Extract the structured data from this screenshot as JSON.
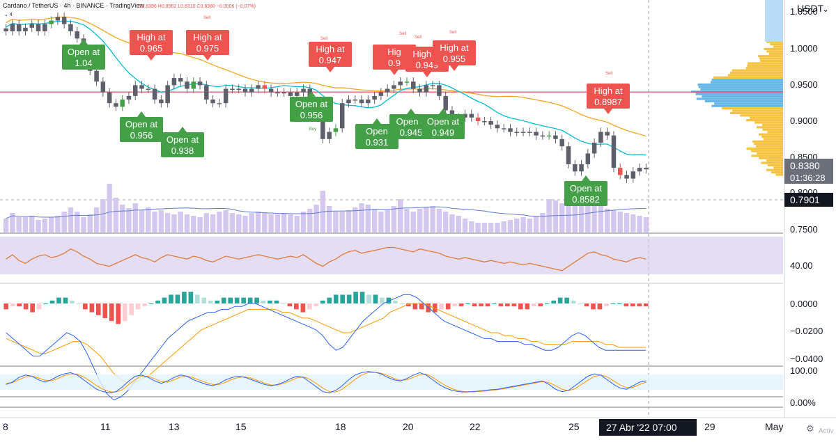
{
  "header": {
    "symbol": "Cardano / TetherUS · 4h · BINANCE · TradingView",
    "ohlc": "O0.8386 H0.8562 L0.8310 C0.8380 −0.0006 (−0.07%)",
    "indicator_row": "⌄ 4"
  },
  "currency_label": "USDT",
  "price_axis": {
    "ticks": [
      "1.0500",
      "1.0000",
      "0.9500",
      "0.9000",
      "0.8500",
      "0.8000",
      "0.7500"
    ],
    "current_price": "0.8380",
    "countdown": "01:36:28",
    "crosshair_price": "0.7901"
  },
  "rsi_axis": {
    "ticks": [
      "40.00"
    ]
  },
  "macd_axis": {
    "ticks": [
      "0.0000",
      "−0.0200",
      "−0.0400"
    ]
  },
  "stoch_axis": {
    "ticks": [
      "100.00",
      "0.00%"
    ]
  },
  "time_axis": {
    "ticks": [
      "8",
      "11",
      "13",
      "15",
      "18",
      "20",
      "22",
      "25",
      "29",
      "May"
    ],
    "crosshair_label": "27 Abr '22   07:00"
  },
  "watermark": "Activ",
  "colors": {
    "up": "#26a69a",
    "down": "#ef5350",
    "candle_gray": "#5d606b",
    "label_green": "#43a047",
    "label_red": "#ef5350",
    "ma_fast": "#00bcd4",
    "ma_slow": "#f5a623",
    "rsi_line": "#e07b39",
    "rsi_band": "#d8cfee",
    "volume": "#d5c8ee",
    "macd_line": "#2962ff",
    "signal_line": "#ff9800",
    "level_line": "#e53950"
  },
  "chart_data": [
    {
      "type": "candlestick",
      "title": "",
      "y_range": [
        0.75,
        1.06
      ],
      "reference_level": 0.9455,
      "close_series": [
        1.03,
        1.04,
        1.03,
        1.035,
        1.04,
        1.03,
        1.04,
        1.045,
        1.05,
        1.04,
        1.03,
        1.02,
        1.0,
        0.975,
        0.96,
        0.945,
        0.93,
        0.925,
        0.935,
        0.94,
        0.955,
        0.95,
        0.95,
        0.935,
        0.93,
        0.955,
        0.965,
        0.96,
        0.95,
        0.96,
        0.955,
        0.935,
        0.93,
        0.93,
        0.95,
        0.95,
        0.95,
        0.945,
        0.95,
        0.955,
        0.95,
        0.945,
        0.945,
        0.945,
        0.94,
        0.945,
        0.95,
        0.93,
        0.915,
        0.88,
        0.89,
        0.895,
        0.93,
        0.935,
        0.935,
        0.93,
        0.935,
        0.94,
        0.945,
        0.95,
        0.955,
        0.96,
        0.96,
        0.95,
        0.945,
        0.955,
        0.955,
        0.94,
        0.92,
        0.91,
        0.91,
        0.915,
        0.91,
        0.905,
        0.905,
        0.9,
        0.895,
        0.895,
        0.89,
        0.89,
        0.89,
        0.89,
        0.885,
        0.885,
        0.885,
        0.88,
        0.87,
        0.845,
        0.835,
        0.845,
        0.86,
        0.875,
        0.89,
        0.885,
        0.84,
        0.83,
        0.825,
        0.835,
        0.84,
        0.838
      ],
      "markers": [
        {
          "kind": "open",
          "price_label": "Open at",
          "value": "1.04"
        },
        {
          "kind": "high",
          "price_label": "High at",
          "value": "0.965"
        },
        {
          "kind": "high",
          "price_label": "High at",
          "value": "0.975"
        },
        {
          "kind": "open",
          "price_label": "Open at",
          "value": "0.956"
        },
        {
          "kind": "open",
          "price_label": "Open at",
          "value": "0.938"
        },
        {
          "kind": "high",
          "price_label": "High at",
          "value": "0.947"
        },
        {
          "kind": "open",
          "price_label": "Open at",
          "value": "0.956"
        },
        {
          "kind": "open",
          "price_label": "Open",
          "value": "0.931"
        },
        {
          "kind": "high",
          "price_label": "Hig",
          "value": "0.9"
        },
        {
          "kind": "high",
          "price_label": "High at",
          "value": "0.949"
        },
        {
          "kind": "open",
          "price_label": "Open a",
          "value": "0.945"
        },
        {
          "kind": "high",
          "price_label": "High at",
          "value": "0.955"
        },
        {
          "kind": "open",
          "price_label": "Open at",
          "value": "0.949"
        },
        {
          "kind": "high",
          "price_label": "High at",
          "value": "0.8987"
        },
        {
          "kind": "open",
          "price_label": "Open at",
          "value": "0.8582"
        }
      ],
      "signals": [
        "Sell",
        "Sell",
        "Buy",
        "Sell",
        "Sell",
        "Sell",
        "Sell"
      ]
    },
    {
      "type": "bar",
      "title": "",
      "series_role": "volume",
      "values": [
        20,
        28,
        22,
        22,
        24,
        18,
        20,
        22,
        24,
        30,
        36,
        30,
        22,
        26,
        36,
        48,
        70,
        50,
        40,
        35,
        42,
        32,
        36,
        30,
        32,
        28,
        26,
        30,
        26,
        24,
        22,
        28,
        26,
        30,
        32,
        28,
        26,
        24,
        28,
        30,
        28,
        26,
        26,
        28,
        26,
        24,
        30,
        34,
        40,
        60,
        38,
        30,
        30,
        32,
        36,
        42,
        40,
        34,
        30,
        32,
        38,
        48,
        34,
        30,
        34,
        36,
        38,
        34,
        30,
        26,
        24,
        20,
        16,
        14,
        14,
        14,
        14,
        16,
        18,
        20,
        22,
        20,
        24,
        28,
        48,
        46,
        42,
        38,
        38,
        46,
        56,
        46,
        40,
        34,
        32,
        30,
        28,
        26,
        24,
        22
      ]
    },
    {
      "type": "line",
      "title": "",
      "series_role": "rsi",
      "y_ticks": [
        40
      ],
      "values": [
        46,
        52,
        44,
        40,
        46,
        50,
        52,
        48,
        50,
        54,
        60,
        56,
        50,
        46,
        40,
        38,
        36,
        40,
        44,
        48,
        52,
        48,
        46,
        42,
        48,
        52,
        50,
        48,
        46,
        50,
        48,
        44,
        42,
        46,
        50,
        48,
        46,
        48,
        50,
        52,
        50,
        48,
        46,
        48,
        50,
        48,
        52,
        46,
        40,
        36,
        42,
        46,
        52,
        56,
        58,
        54,
        56,
        58,
        60,
        62,
        62,
        60,
        58,
        56,
        60,
        58,
        56,
        54,
        50,
        48,
        46,
        48,
        46,
        44,
        42,
        44,
        42,
        40,
        42,
        40,
        38,
        40,
        38,
        36,
        34,
        32,
        30,
        36,
        42,
        48,
        54,
        56,
        52,
        50,
        46,
        44,
        42,
        46,
        48,
        46
      ]
    },
    {
      "type": "bar",
      "title": "",
      "series_role": "macd",
      "y_ticks": [
        0.0,
        -0.02,
        -0.04
      ],
      "histogram": [
        -0.002,
        -0.001,
        -0.001,
        -0.002,
        -0.003,
        -0.002,
        0.0,
        0.001,
        0.002,
        0.002,
        0.001,
        0.0,
        -0.002,
        -0.003,
        -0.004,
        -0.005,
        -0.006,
        -0.007,
        -0.006,
        -0.004,
        -0.002,
        -0.001,
        0.0,
        0.001,
        0.002,
        0.003,
        0.003,
        0.004,
        0.004,
        0.003,
        0.002,
        0.001,
        0.001,
        0.002,
        0.002,
        0.002,
        0.002,
        0.002,
        0.002,
        0.001,
        0.001,
        0.001,
        0.0,
        -0.001,
        -0.002,
        -0.003,
        -0.002,
        -0.001,
        0.001,
        0.002,
        0.003,
        0.003,
        0.003,
        0.004,
        0.004,
        0.003,
        0.003,
        0.002,
        0.002,
        0.001,
        0.0,
        -0.001,
        -0.002,
        -0.002,
        -0.003,
        -0.003,
        -0.002,
        -0.002,
        -0.001,
        -0.001,
        0.0,
        -0.001,
        -0.001,
        -0.001,
        0.0,
        -0.001,
        -0.001,
        -0.001,
        -0.002,
        -0.002,
        -0.001,
        -0.001,
        0.0,
        0.001,
        0.002,
        0.002,
        0.001,
        0.0,
        -0.001,
        -0.002,
        -0.002,
        -0.001,
        0.0,
        0.0,
        -0.001,
        -0.001,
        -0.001,
        -0.001
      ],
      "series": [
        {
          "name": "",
          "values": [
            -0.01,
            -0.012,
            -0.014,
            -0.016,
            -0.018,
            -0.018,
            -0.016,
            -0.014,
            -0.012,
            -0.01,
            -0.011,
            -0.013,
            -0.017,
            -0.022,
            -0.027,
            -0.031,
            -0.033,
            -0.032,
            -0.03,
            -0.027,
            -0.024,
            -0.021,
            -0.018,
            -0.015,
            -0.012,
            -0.01,
            -0.008,
            -0.006,
            -0.005,
            -0.004,
            -0.003,
            -0.003,
            -0.002,
            -0.002,
            -0.001,
            -0.001,
            0.0,
            0.0,
            -0.001,
            -0.002,
            -0.003,
            -0.004,
            -0.005,
            -0.006,
            -0.007,
            -0.008,
            -0.009,
            -0.011,
            -0.014,
            -0.016,
            -0.015,
            -0.012,
            -0.009,
            -0.006,
            -0.004,
            -0.002,
            0.0,
            0.001,
            0.002,
            0.003,
            0.003,
            0.002,
            0.0,
            -0.002,
            -0.004,
            -0.006,
            -0.007,
            -0.008,
            -0.009,
            -0.01,
            -0.011,
            -0.012,
            -0.012,
            -0.013,
            -0.013,
            -0.013,
            -0.013,
            -0.014,
            -0.014,
            -0.015,
            -0.016,
            -0.016,
            -0.015,
            -0.013,
            -0.011,
            -0.01,
            -0.011,
            -0.013,
            -0.015,
            -0.016,
            -0.016,
            -0.016,
            -0.016,
            -0.016,
            -0.016,
            -0.016
          ]
        },
        {
          "name": "",
          "values": [
            -0.012,
            -0.013,
            -0.014,
            -0.015,
            -0.016,
            -0.017,
            -0.017,
            -0.016,
            -0.015,
            -0.014,
            -0.013,
            -0.013,
            -0.014,
            -0.016,
            -0.018,
            -0.021,
            -0.024,
            -0.026,
            -0.027,
            -0.027,
            -0.026,
            -0.025,
            -0.023,
            -0.021,
            -0.019,
            -0.017,
            -0.015,
            -0.013,
            -0.011,
            -0.009,
            -0.008,
            -0.007,
            -0.006,
            -0.005,
            -0.004,
            -0.003,
            -0.002,
            -0.002,
            -0.002,
            -0.002,
            -0.002,
            -0.003,
            -0.003,
            -0.004,
            -0.005,
            -0.005,
            -0.006,
            -0.007,
            -0.008,
            -0.009,
            -0.01,
            -0.01,
            -0.009,
            -0.008,
            -0.007,
            -0.006,
            -0.005,
            -0.003,
            -0.002,
            -0.001,
            0.0,
            0.0,
            0.0,
            -0.001,
            -0.002,
            -0.003,
            -0.004,
            -0.005,
            -0.006,
            -0.007,
            -0.008,
            -0.009,
            -0.01,
            -0.01,
            -0.011,
            -0.011,
            -0.012,
            -0.012,
            -0.013,
            -0.013,
            -0.014,
            -0.014,
            -0.014,
            -0.014,
            -0.013,
            -0.013,
            -0.013,
            -0.013,
            -0.013,
            -0.014,
            -0.014,
            -0.015,
            -0.015,
            -0.015,
            -0.015,
            -0.015
          ]
        }
      ]
    },
    {
      "type": "line",
      "title": "",
      "series_role": "stochastic",
      "y_ticks": [
        100,
        0
      ],
      "series": [
        {
          "name": "",
          "values": [
            40,
            50,
            70,
            80,
            75,
            60,
            50,
            60,
            75,
            85,
            90,
            80,
            60,
            40,
            20,
            10,
            5,
            10,
            30,
            55,
            75,
            80,
            70,
            55,
            45,
            55,
            70,
            80,
            75,
            60,
            50,
            40,
            35,
            45,
            60,
            70,
            75,
            70,
            60,
            50,
            40,
            35,
            40,
            50,
            65,
            75,
            70,
            50,
            30,
            10,
            5,
            15,
            35,
            60,
            80,
            90,
            95,
            92,
            85,
            70,
            60,
            55,
            65,
            80,
            90,
            80,
            60,
            40,
            25,
            15,
            10,
            8,
            10,
            12,
            15,
            18,
            20,
            25,
            30,
            35,
            40,
            45,
            50,
            55,
            40,
            20,
            10,
            15,
            35,
            55,
            75,
            85,
            80,
            60,
            40,
            25,
            20,
            35,
            50,
            55
          ]
        },
        {
          "name": "",
          "values": [
            45,
            48,
            60,
            72,
            76,
            68,
            58,
            56,
            65,
            78,
            85,
            84,
            72,
            55,
            35,
            20,
            10,
            8,
            18,
            40,
            62,
            76,
            75,
            64,
            52,
            50,
            60,
            72,
            76,
            68,
            58,
            48,
            40,
            40,
            50,
            62,
            70,
            72,
            66,
            56,
            46,
            38,
            38,
            45,
            56,
            68,
            72,
            62,
            44,
            25,
            10,
            8,
            20,
            40,
            62,
            80,
            90,
            92,
            88,
            78,
            66,
            58,
            60,
            70,
            82,
            84,
            70,
            52,
            35,
            22,
            14,
            10,
            9,
            10,
            12,
            15,
            18,
            22,
            27,
            32,
            37,
            42,
            47,
            52,
            48,
            35,
            20,
            14,
            22,
            40,
            58,
            74,
            80,
            72,
            55,
            38,
            27,
            28,
            40,
            50
          ]
        }
      ]
    }
  ]
}
